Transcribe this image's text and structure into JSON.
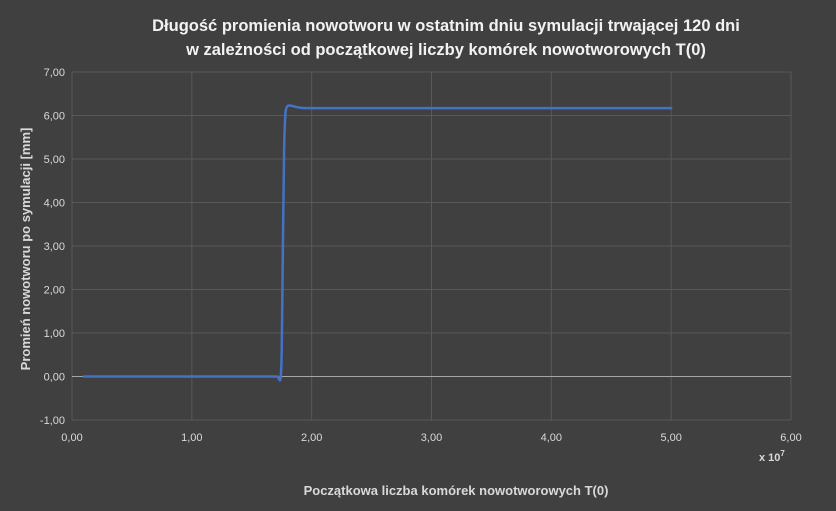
{
  "chart_data": {
    "type": "line",
    "title_lines": [
      "Długość promienia nowotworu w ostatnim dniu symulacji trwającej 120 dni",
      "w zależności od początkowej liczby komórek nowotworowych T(0)"
    ],
    "xlabel": "Początkowa liczba komórek nowotworowych T(0)",
    "ylabel": "Promień nowotworu po symulacji [mm]",
    "x_multiplier_base": "x 10",
    "x_multiplier_exponent": "7",
    "xlim": [
      0,
      6
    ],
    "ylim": [
      -1,
      7
    ],
    "x_ticks": [
      "0,00",
      "1,00",
      "2,00",
      "3,00",
      "4,00",
      "5,00",
      "6,00"
    ],
    "y_ticks": [
      "-1,00",
      "0,00",
      "1,00",
      "2,00",
      "3,00",
      "4,00",
      "5,00",
      "6,00",
      "7,00"
    ],
    "grid": true,
    "series": [
      {
        "color": "#4472c4",
        "x": [
          0.1,
          0.5,
          1.0,
          1.5,
          1.7,
          1.72,
          1.74,
          1.75,
          1.76,
          1.77,
          1.78,
          1.79,
          1.8,
          1.82,
          1.85,
          1.9,
          1.95,
          2.0,
          2.5,
          3.0,
          3.5,
          4.0,
          4.5,
          5.0
        ],
        "y": [
          0.0,
          0.0,
          0.0,
          0.0,
          0.0,
          -0.02,
          -0.05,
          0.6,
          3.0,
          5.2,
          6.0,
          6.18,
          6.22,
          6.23,
          6.21,
          6.18,
          6.17,
          6.17,
          6.17,
          6.17,
          6.17,
          6.17,
          6.17,
          6.17
        ]
      }
    ]
  }
}
